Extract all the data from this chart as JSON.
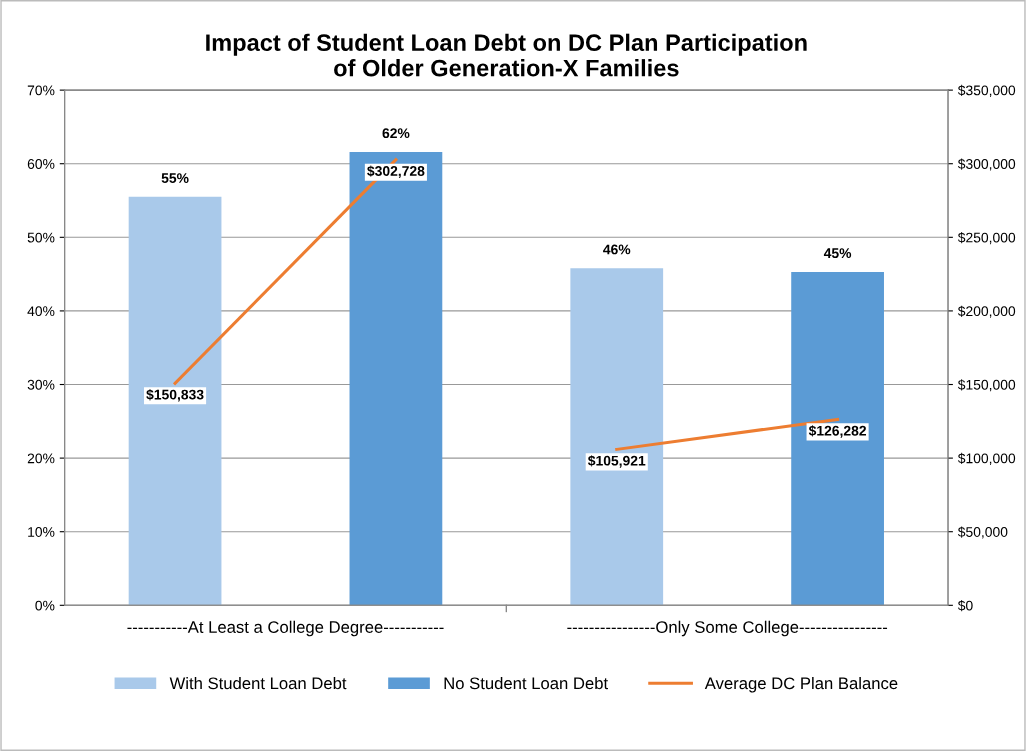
{
  "chart_data": {
    "type": "bar",
    "title": "Impact of Student Loan Debt on DC Plan Participation\nof Older Generation-X Families",
    "categories": [
      null,
      null,
      null,
      null
    ],
    "annotations": [
      "-----------At Least a College Degree-----------",
      "----------------Only Some College----------------"
    ],
    "series": [
      {
        "name": "With Student Loan Debt",
        "color": "#a9c9ea",
        "values": [
          55.5,
          null,
          45.8,
          null
        ],
        "value_labels": [
          "55%",
          null,
          "46%",
          null
        ]
      },
      {
        "name": "No Student Loan Debt",
        "color": "#5b9bd5",
        "values": [
          null,
          61.6,
          null,
          45.3
        ],
        "value_labels": [
          null,
          "62%",
          null,
          "45%"
        ]
      },
      {
        "name": "Average DC Plan Balance",
        "type": "line",
        "axis": "y2",
        "color": "#ed7d31",
        "values": [
          150833,
          302728,
          null,
          null
        ],
        "value_labels": [
          "$150,833",
          "$302,728",
          null,
          null
        ]
      },
      {
        "type": "line",
        "axis": "y2",
        "color": "#ed7d31",
        "values": [
          null,
          null,
          105921,
          126282
        ],
        "value_labels": [
          null,
          null,
          "$105,921",
          "$126,282"
        ]
      }
    ],
    "ylim": [
      0,
      70
    ],
    "yticks": [
      {
        "value": 0,
        "label": "0%"
      },
      {
        "value": 10,
        "label": "10%"
      },
      {
        "value": 20,
        "label": "20%"
      },
      {
        "value": 30,
        "label": "30%"
      },
      {
        "value": 40,
        "label": "40%"
      },
      {
        "value": 50,
        "label": "50%"
      },
      {
        "value": 60,
        "label": "60%"
      },
      {
        "value": 70,
        "label": "70%"
      }
    ],
    "y2lim": [
      0,
      350000
    ],
    "y2ticks": [
      {
        "value": 0,
        "label": "$0"
      },
      {
        "value": 50000,
        "label": "$50,000"
      },
      {
        "value": 100000,
        "label": "$100,000"
      },
      {
        "value": 150000,
        "label": "$150,000"
      },
      {
        "value": 200000,
        "label": "$200,000"
      },
      {
        "value": 250000,
        "label": "$250,000"
      },
      {
        "value": 300000,
        "label": "$300,000"
      },
      {
        "value": 350000,
        "label": "$350,000"
      }
    ],
    "grid": "y",
    "legend": "bottom"
  }
}
